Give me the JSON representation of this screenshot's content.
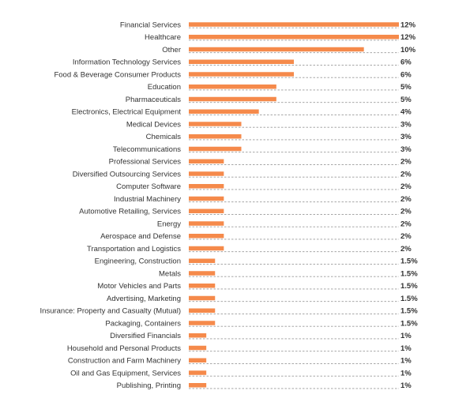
{
  "chart_data": {
    "type": "bar",
    "orientation": "horizontal",
    "bar_color": "#F58A4B",
    "value_suffix": "%",
    "categories": [
      "Financial Services",
      "Healthcare",
      "Other",
      "Information Technology Services",
      "Food & Beverage Consumer Products",
      "Education",
      "Pharmaceuticals",
      "Electronics, Electrical Equipment",
      "Medical Devices",
      "Chemicals",
      "Telecommunications",
      "Professional Services",
      "Diversified Outsourcing Services",
      "Computer Software",
      "Industrial Machinery",
      "Automotive Retailing, Services",
      "Energy",
      "Aerospace and Defense",
      "Transportation and Logistics",
      "Engineering, Construction",
      "Metals",
      "Motor Vehicles and Parts",
      "Advertising, Marketing",
      "Insurance: Property and Casualty (Mutual)",
      "Packaging, Containers",
      "Diversified Financials",
      "Household and Personal Products",
      "Construction and Farm Machinery",
      "Oil and Gas Equipment, Services",
      "Publishing, Printing"
    ],
    "values": [
      12,
      12,
      10,
      6,
      6,
      5,
      5,
      4,
      3,
      3,
      3,
      2,
      2,
      2,
      2,
      2,
      2,
      2,
      2,
      1.5,
      1.5,
      1.5,
      1.5,
      1.5,
      1.5,
      1,
      1,
      1,
      1,
      1
    ],
    "value_labels": [
      "12%",
      "12%",
      "10%",
      "6%",
      "6%",
      "5%",
      "5%",
      "4%",
      "3%",
      "3%",
      "3%",
      "2%",
      "2%",
      "2%",
      "2%",
      "2%",
      "2%",
      "2%",
      "2%",
      "1.5%",
      "1.5%",
      "1.5%",
      "1.5%",
      "1.5%",
      "1.5%",
      "1%",
      "1%",
      "1%",
      "1%",
      "1%"
    ],
    "xlim": [
      0,
      12
    ],
    "grid": false,
    "legend": "none"
  }
}
